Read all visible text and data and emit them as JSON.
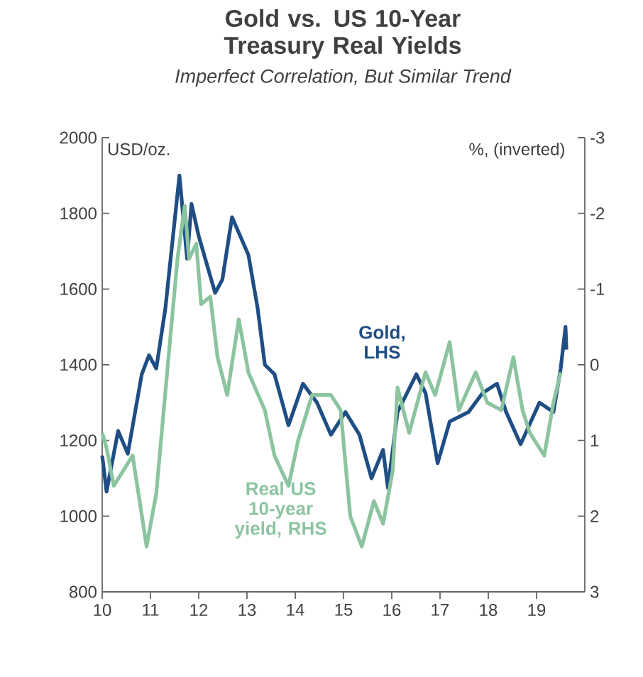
{
  "chart_data": {
    "type": "line",
    "title": "Gold vs. US 10-Year Treasury Real Yields",
    "subtitle": "Imperfect Correlation, But Similar Trend",
    "ylabel": "USD/oz.",
    "y2label": "%, (inverted)",
    "xlim": [
      10,
      20
    ],
    "xticks": [
      10,
      11,
      12,
      13,
      14,
      15,
      16,
      17,
      18,
      19
    ],
    "ylim": [
      800,
      2000
    ],
    "yticks": [
      800,
      1000,
      1200,
      1400,
      1600,
      1800,
      2000
    ],
    "y2lim": [
      3,
      -3
    ],
    "y2ticks": [
      -3,
      -2,
      -1,
      0,
      1,
      2,
      3
    ],
    "series": [
      {
        "name": "Gold, LHS",
        "color": "#1f4e84",
        "axis": "y",
        "x": [
          10.0,
          10.09,
          10.33,
          10.53,
          10.82,
          10.97,
          11.12,
          11.31,
          11.6,
          11.76,
          11.85,
          12.0,
          12.34,
          12.49,
          12.69,
          13.03,
          13.22,
          13.37,
          13.57,
          13.86,
          14.16,
          14.45,
          14.74,
          15.04,
          15.33,
          15.58,
          15.82,
          15.92,
          16.12,
          16.51,
          16.7,
          16.95,
          17.2,
          17.59,
          17.88,
          18.18,
          18.37,
          18.67,
          19.06,
          19.35,
          19.5,
          19.6,
          19.62
        ],
        "values": [
          1160,
          1065,
          1225,
          1165,
          1375,
          1425,
          1390,
          1550,
          1900,
          1680,
          1825,
          1740,
          1590,
          1625,
          1790,
          1690,
          1550,
          1400,
          1375,
          1240,
          1350,
          1300,
          1215,
          1275,
          1215,
          1100,
          1175,
          1075,
          1275,
          1375,
          1325,
          1140,
          1250,
          1275,
          1325,
          1350,
          1275,
          1190,
          1300,
          1275,
          1390,
          1500,
          1440
        ]
      },
      {
        "name": "Real US 10-year yield, RHS",
        "color": "#8cc4a0",
        "axis": "y2",
        "x": [
          10.0,
          10.09,
          10.24,
          10.63,
          10.92,
          11.12,
          11.36,
          11.56,
          11.71,
          11.8,
          11.95,
          12.05,
          12.24,
          12.39,
          12.59,
          12.83,
          13.03,
          13.37,
          13.57,
          13.86,
          14.06,
          14.35,
          14.74,
          14.94,
          15.14,
          15.38,
          15.63,
          15.82,
          16.02,
          16.12,
          16.36,
          16.7,
          16.9,
          17.2,
          17.39,
          17.74,
          17.98,
          18.27,
          18.52,
          18.71,
          18.86,
          19.16,
          19.35,
          19.5
        ],
        "values": [
          0.9,
          1.1,
          1.6,
          1.2,
          2.4,
          1.7,
          0.0,
          -1.4,
          -2.1,
          -1.4,
          -1.6,
          -0.8,
          -0.9,
          -0.1,
          0.4,
          -0.6,
          0.1,
          0.6,
          1.2,
          1.6,
          1.0,
          0.4,
          0.4,
          0.6,
          2.0,
          2.4,
          1.8,
          2.1,
          1.4,
          0.3,
          0.9,
          0.1,
          0.4,
          -0.3,
          0.6,
          0.1,
          0.5,
          0.6,
          -0.1,
          0.6,
          0.9,
          1.2,
          0.5,
          0.1
        ]
      }
    ]
  }
}
